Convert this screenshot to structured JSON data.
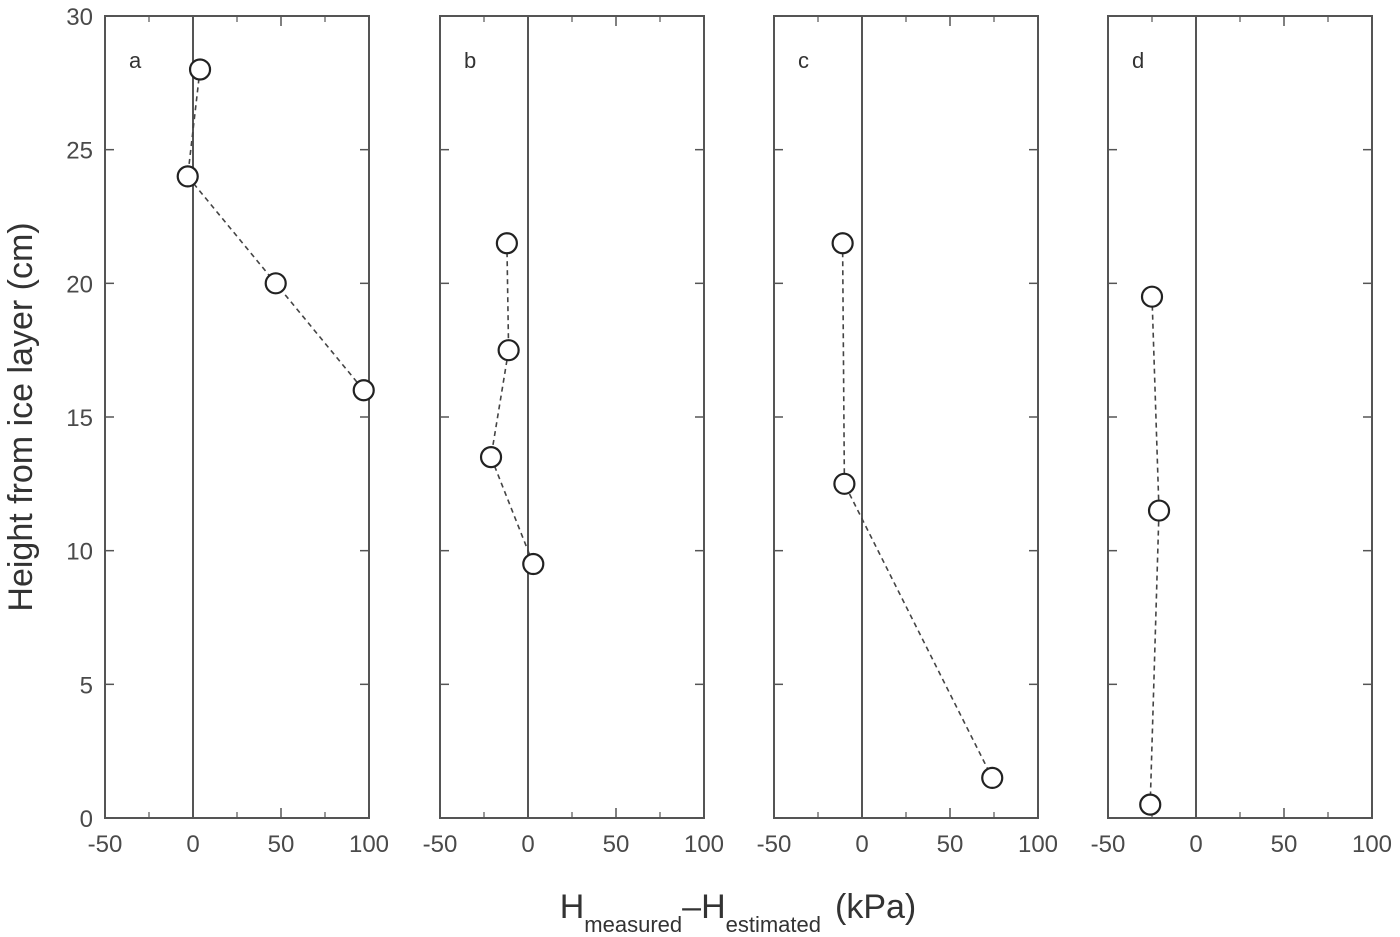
{
  "chart_data": {
    "type": "scatter",
    "ylabel": "Height from ice layer (cm)",
    "xlabel": {
      "main_1": "H",
      "sub_1": "measured",
      "separator": "–",
      "main_2": "H",
      "sub_2": "estimated",
      "unit": "(kPa)"
    },
    "ylim": [
      0,
      30
    ],
    "yticks": [
      0,
      5,
      10,
      15,
      20,
      25,
      30
    ],
    "xlim": [
      -50,
      100
    ],
    "xticks": [
      -50,
      0,
      50,
      100
    ],
    "grid": false,
    "marker": "open-circle",
    "connector": "dashed-line",
    "reference_line_x": 0,
    "panels": [
      {
        "label": "a",
        "points": [
          {
            "x": 4,
            "y": 28
          },
          {
            "x": -3,
            "y": 24
          },
          {
            "x": 47,
            "y": 20
          },
          {
            "x": 97,
            "y": 16
          }
        ]
      },
      {
        "label": "b",
        "points": [
          {
            "x": -12,
            "y": 21.5
          },
          {
            "x": -11,
            "y": 17.5
          },
          {
            "x": -21,
            "y": 13.5
          },
          {
            "x": 3,
            "y": 9.5
          }
        ]
      },
      {
        "label": "c",
        "points": [
          {
            "x": -11,
            "y": 21.5
          },
          {
            "x": -10,
            "y": 12.5
          },
          {
            "x": 74,
            "y": 1.5
          }
        ]
      },
      {
        "label": "d",
        "points": [
          {
            "x": -25,
            "y": 19.5
          },
          {
            "x": -21,
            "y": 11.5
          },
          {
            "x": -26,
            "y": 0.5
          }
        ]
      }
    ]
  }
}
